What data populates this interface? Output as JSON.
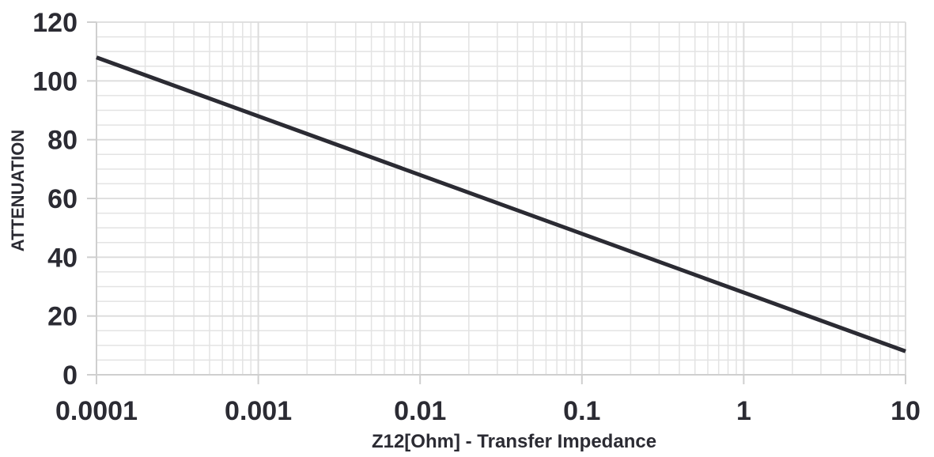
{
  "chart_data": {
    "type": "line",
    "title": "",
    "xlabel": "Z12[Ohm] - Transfer Impedance",
    "ylabel": "ATTENUATION",
    "xscale": "log",
    "xlim": [
      0.0001,
      10
    ],
    "ylim": [
      0,
      120
    ],
    "xticks": [
      "0.0001",
      "0.001",
      "0.01",
      "0.1",
      "1",
      "10"
    ],
    "yticks": [
      "0",
      "20",
      "40",
      "60",
      "80",
      "100",
      "120"
    ],
    "grid": true,
    "legend": "none",
    "series": [
      {
        "x": [
          0.0001,
          10
        ],
        "y": [
          108,
          8
        ],
        "color": "#2b2b33"
      }
    ]
  }
}
